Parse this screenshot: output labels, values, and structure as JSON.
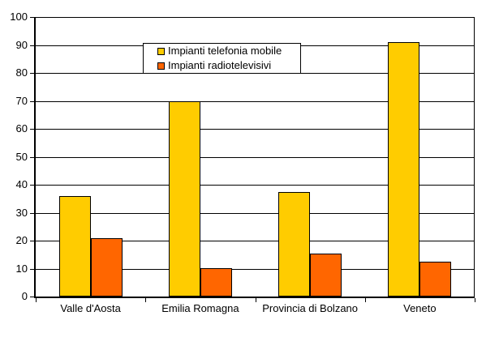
{
  "chart_data": {
    "type": "bar",
    "title": "",
    "categories": [
      "Valle d'Aosta",
      "Emilia Romagna",
      "Provincia di Bolzano",
      "Veneto"
    ],
    "series": [
      {
        "name": "Impianti telefonia mobile",
        "color": "#FFCC00",
        "values": [
          36,
          70,
          37.5,
          91
        ]
      },
      {
        "name": "Impianti radiotelevisivi",
        "color": "#FF6600",
        "values": [
          21,
          10,
          15.5,
          12.5
        ]
      }
    ],
    "ylim": [
      0,
      100
    ],
    "y_ticks": [
      0,
      10,
      20,
      30,
      40,
      50,
      60,
      70,
      80,
      90,
      100
    ],
    "grid": true,
    "legend_position": "top-center-inside",
    "colors": {
      "axis": "#000000",
      "gridline": "#000000",
      "background": "#ffffff",
      "text": "#000000"
    }
  }
}
